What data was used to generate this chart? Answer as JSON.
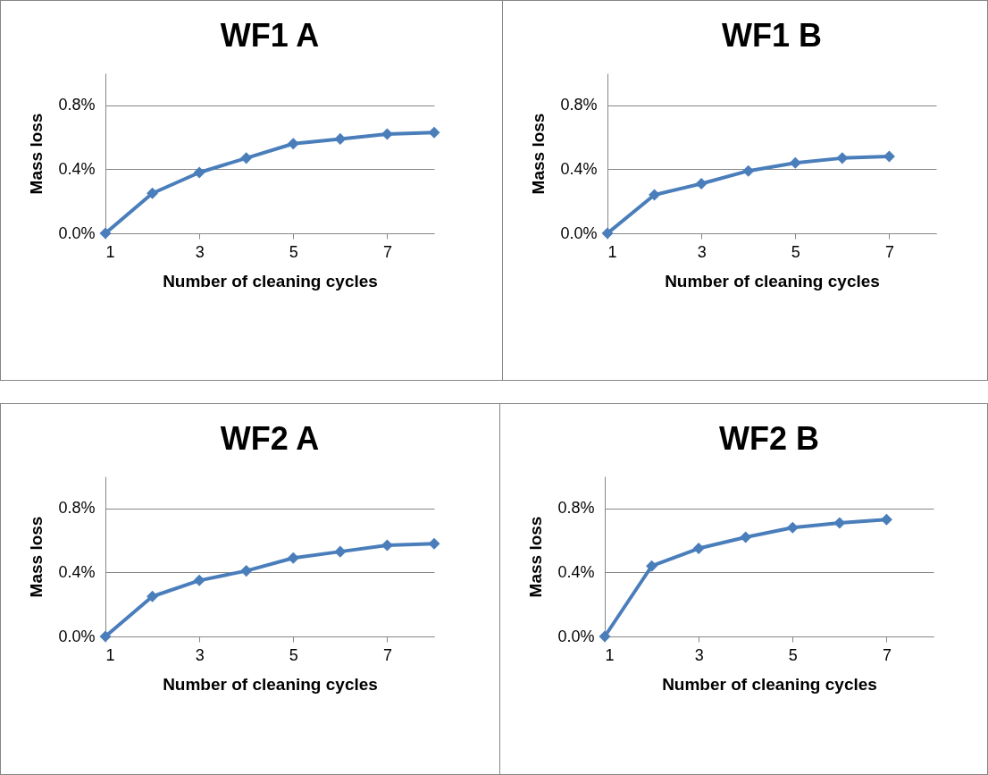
{
  "chart_data": [
    {
      "type": "line",
      "title": "WF1 A",
      "xlabel": "Number of cleaning cycles",
      "ylabel": "Mass loss",
      "x": [
        1,
        2,
        3,
        4,
        5,
        6,
        7,
        8
      ],
      "series": [
        {
          "color": "#4a7ebb",
          "values": [
            0,
            0.25,
            0.38,
            0.47,
            0.56,
            0.59,
            0.62,
            0.63
          ]
        }
      ],
      "xlim": [
        1,
        8
      ],
      "xticks": [
        1,
        3,
        5,
        7
      ],
      "ylim": [
        0,
        1
      ],
      "yticks": [
        {
          "value": 0,
          "label": "0.0%"
        },
        {
          "value": 0.4,
          "label": "0.4%"
        },
        {
          "value": 0.8,
          "label": "0.8%"
        }
      ],
      "grid": "y",
      "marker": "diamond",
      "line_style": "solid"
    },
    {
      "type": "line",
      "title": "WF1 B",
      "xlabel": "Number of cleaning cycles",
      "ylabel": "Mass loss",
      "x": [
        1,
        2,
        3,
        4,
        5,
        6,
        7
      ],
      "series": [
        {
          "color": "#4a7ebb",
          "values": [
            0,
            0.24,
            0.31,
            0.39,
            0.44,
            0.47,
            0.48
          ]
        }
      ],
      "xlim": [
        1,
        8
      ],
      "xticks": [
        1,
        3,
        5,
        7
      ],
      "ylim": [
        0,
        1
      ],
      "yticks": [
        {
          "value": 0,
          "label": "0.0%"
        },
        {
          "value": 0.4,
          "label": "0.4%"
        },
        {
          "value": 0.8,
          "label": "0.8%"
        }
      ],
      "grid": "y",
      "marker": "diamond",
      "line_style": "solid"
    },
    {
      "type": "line",
      "title": "WF2 A",
      "xlabel": "Number of cleaning cycles",
      "ylabel": "Mass loss",
      "x": [
        1,
        2,
        3,
        4,
        5,
        6,
        7,
        8
      ],
      "series": [
        {
          "color": "#4a7ebb",
          "values": [
            0,
            0.25,
            0.35,
            0.41,
            0.49,
            0.53,
            0.57,
            0.58
          ]
        }
      ],
      "xlim": [
        1,
        8
      ],
      "xticks": [
        1,
        3,
        5,
        7
      ],
      "ylim": [
        0,
        1
      ],
      "yticks": [
        {
          "value": 0,
          "label": "0.0%"
        },
        {
          "value": 0.4,
          "label": "0.4%"
        },
        {
          "value": 0.8,
          "label": "0.8%"
        }
      ],
      "grid": "y",
      "marker": "diamond",
      "line_style": "solid"
    },
    {
      "type": "line",
      "title": "WF2 B",
      "xlabel": "Number of cleaning cycles",
      "ylabel": "Mass loss",
      "x": [
        1,
        2,
        3,
        4,
        5,
        6,
        7
      ],
      "series": [
        {
          "color": "#4a7ebb",
          "values": [
            0,
            0.44,
            0.55,
            0.62,
            0.68,
            0.71,
            0.73
          ]
        }
      ],
      "xlim": [
        1,
        8
      ],
      "xticks": [
        1,
        3,
        5,
        7
      ],
      "ylim": [
        0,
        1
      ],
      "yticks": [
        {
          "value": 0,
          "label": "0.0%"
        },
        {
          "value": 0.4,
          "label": "0.4%"
        },
        {
          "value": 0.8,
          "label": "0.8%"
        }
      ],
      "grid": "y",
      "marker": "diamond",
      "line_style": "solid"
    }
  ]
}
